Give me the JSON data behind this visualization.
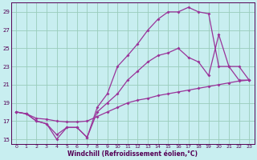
{
  "xlabel": "Windchill (Refroidissement éolien,°C)",
  "bg_color": "#c8eef0",
  "grid_color": "#99ccbb",
  "line_color": "#993399",
  "xlim": [
    -0.5,
    23.5
  ],
  "ylim": [
    14.5,
    30.0
  ],
  "yticks": [
    15,
    17,
    19,
    21,
    23,
    25,
    27,
    29
  ],
  "xticks": [
    0,
    1,
    2,
    3,
    4,
    5,
    6,
    7,
    8,
    9,
    10,
    11,
    12,
    13,
    14,
    15,
    16,
    17,
    18,
    19,
    20,
    21,
    22,
    23
  ],
  "line1_x": [
    0,
    1,
    2,
    3,
    4,
    5,
    6,
    7,
    8,
    9,
    10,
    11,
    12,
    13,
    14,
    15,
    16,
    17,
    18,
    19,
    20,
    21,
    22,
    23
  ],
  "line1_y": [
    18.0,
    17.8,
    17.3,
    17.2,
    17.0,
    16.9,
    16.9,
    17.0,
    17.5,
    18.0,
    18.5,
    19.0,
    19.3,
    19.5,
    19.8,
    20.0,
    20.2,
    20.4,
    20.6,
    20.8,
    21.0,
    21.2,
    21.4,
    21.5
  ],
  "line2_x": [
    0,
    1,
    2,
    3,
    4,
    5,
    6,
    7,
    8,
    9,
    10,
    11,
    12,
    13,
    14,
    15,
    16,
    17,
    18,
    19,
    20,
    21,
    22,
    23
  ],
  "line2_y": [
    18.0,
    17.8,
    17.0,
    16.7,
    15.0,
    16.3,
    16.3,
    15.2,
    18.0,
    19.0,
    20.0,
    21.5,
    22.5,
    23.5,
    24.2,
    24.5,
    25.0,
    24.0,
    23.5,
    22.0,
    26.5,
    23.0,
    23.0,
    21.5
  ],
  "line3_x": [
    0,
    1,
    2,
    3,
    4,
    5,
    6,
    7,
    8,
    9,
    10,
    11,
    12,
    13,
    14,
    15,
    16,
    17,
    18,
    19,
    20,
    21,
    22,
    23
  ],
  "line3_y": [
    18.0,
    17.8,
    17.0,
    16.7,
    15.5,
    16.3,
    16.3,
    15.2,
    18.5,
    20.0,
    23.0,
    24.2,
    25.5,
    27.0,
    28.2,
    29.0,
    29.0,
    29.5,
    29.0,
    28.8,
    23.0,
    23.0,
    21.5,
    21.5
  ]
}
